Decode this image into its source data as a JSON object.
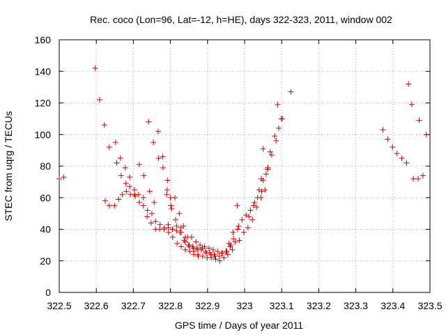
{
  "chart_data": {
    "type": "scatter",
    "title": "Rec. coco (Lon=96, Lat=-12, h=HE), days 322-323, 2011, window 002",
    "xlabel": "GPS time / Days of year 2011",
    "ylabel": "STEC from uqrg / TECUs",
    "xlim": [
      322.5,
      323.5
    ],
    "ylim": [
      0,
      160
    ],
    "grid": true,
    "marker": "plus",
    "marker_color": "#cc0000",
    "x_ticks": [
      322.5,
      322.6,
      322.7,
      322.8,
      322.9,
      323.0,
      323.1,
      323.2,
      323.3,
      323.4,
      323.5
    ],
    "x_tick_labels": [
      "322.5",
      "322.6",
      "322.7",
      "322.8",
      "322.9",
      "323",
      "323.1",
      "323.2",
      "323.3",
      "323.4",
      "323.5"
    ],
    "y_ticks": [
      0,
      20,
      40,
      60,
      80,
      100,
      120,
      140,
      160
    ],
    "y_tick_labels": [
      "0",
      "20",
      "40",
      "60",
      "80",
      "100",
      "120",
      "140",
      "160"
    ],
    "series": [
      {
        "name": "STEC",
        "points": [
          [
            322.5,
            72
          ],
          [
            322.512,
            73
          ],
          [
            322.597,
            142
          ],
          [
            322.609,
            122
          ],
          [
            322.622,
            106
          ],
          [
            322.635,
            92
          ],
          [
            322.652,
            95
          ],
          [
            322.665,
            85
          ],
          [
            322.678,
            79
          ],
          [
            322.69,
            73
          ],
          [
            322.703,
            65
          ],
          [
            322.716,
            81
          ],
          [
            322.728,
            74
          ],
          [
            322.741,
            108
          ],
          [
            322.754,
            95
          ],
          [
            322.767,
            102
          ],
          [
            322.779,
            86
          ],
          [
            322.792,
            71
          ],
          [
            322.624,
            58
          ],
          [
            322.635,
            55
          ],
          [
            322.649,
            55
          ],
          [
            322.66,
            59
          ],
          [
            322.67,
            62
          ],
          [
            322.681,
            64
          ],
          [
            322.692,
            62
          ],
          [
            322.705,
            61
          ],
          [
            322.716,
            57
          ],
          [
            322.727,
            55
          ],
          [
            322.737,
            48
          ],
          [
            322.748,
            44
          ],
          [
            322.76,
            40
          ],
          [
            322.771,
            40
          ],
          [
            322.783,
            40
          ],
          [
            322.794,
            41
          ],
          [
            322.805,
            40
          ],
          [
            322.817,
            39
          ],
          [
            322.828,
            41
          ],
          [
            322.84,
            35
          ],
          [
            322.851,
            30
          ],
          [
            322.862,
            28
          ],
          [
            322.874,
            27
          ],
          [
            322.655,
            82
          ],
          [
            322.667,
            74
          ],
          [
            322.68,
            69
          ],
          [
            322.69,
            67
          ],
          [
            322.703,
            62
          ],
          [
            322.714,
            62
          ],
          [
            322.727,
            60
          ],
          [
            322.738,
            52
          ],
          [
            322.75,
            50
          ],
          [
            322.76,
            45
          ],
          [
            322.772,
            43
          ],
          [
            322.783,
            41
          ],
          [
            322.795,
            38
          ],
          [
            322.806,
            35
          ],
          [
            322.818,
            31
          ],
          [
            322.829,
            29
          ],
          [
            322.84,
            27
          ],
          [
            322.852,
            26
          ],
          [
            322.863,
            24
          ],
          [
            322.875,
            23
          ],
          [
            322.887,
            23
          ],
          [
            322.899,
            22
          ],
          [
            322.91,
            22
          ],
          [
            322.922,
            21
          ],
          [
            322.933,
            20
          ],
          [
            322.744,
            64
          ],
          [
            322.756,
            57
          ],
          [
            322.768,
            85
          ],
          [
            322.78,
            79
          ],
          [
            322.791,
            65
          ],
          [
            322.8,
            60
          ],
          [
            322.803,
            53
          ],
          [
            322.814,
            46
          ],
          [
            322.826,
            38
          ],
          [
            322.837,
            33
          ],
          [
            322.848,
            30
          ],
          [
            322.86,
            29
          ],
          [
            322.871,
            28
          ],
          [
            322.883,
            27
          ],
          [
            322.895,
            26
          ],
          [
            322.906,
            25
          ],
          [
            322.918,
            24
          ],
          [
            322.79,
            62
          ],
          [
            322.801,
            55
          ],
          [
            322.812,
            60
          ],
          [
            322.824,
            50
          ],
          [
            322.835,
            42
          ],
          [
            322.846,
            35
          ],
          [
            322.857,
            35
          ],
          [
            322.869,
            32
          ],
          [
            322.88,
            30
          ],
          [
            322.892,
            29
          ],
          [
            322.904,
            28
          ],
          [
            322.915,
            27
          ],
          [
            322.927,
            26
          ],
          [
            322.938,
            25
          ],
          [
            322.95,
            26
          ],
          [
            322.961,
            29
          ],
          [
            322.794,
            43
          ],
          [
            322.806,
            40
          ],
          [
            322.817,
            42
          ],
          [
            322.829,
            38
          ],
          [
            322.84,
            32
          ],
          [
            322.851,
            29
          ],
          [
            322.863,
            26
          ],
          [
            322.874,
            24
          ],
          [
            322.886,
            28
          ],
          [
            322.897,
            25
          ],
          [
            322.909,
            24
          ],
          [
            322.92,
            23
          ],
          [
            322.932,
            23
          ],
          [
            322.944,
            22
          ],
          [
            322.955,
            24
          ],
          [
            322.967,
            27
          ],
          [
            322.94,
            25
          ],
          [
            322.952,
            26
          ],
          [
            322.963,
            30
          ],
          [
            322.975,
            32
          ],
          [
            322.986,
            33
          ],
          [
            322.998,
            38
          ],
          [
            323.009,
            41
          ],
          [
            323.021,
            46
          ],
          [
            323.032,
            54
          ],
          [
            323.044,
            60
          ],
          [
            323.055,
            65
          ],
          [
            322.958,
            31
          ],
          [
            322.97,
            34
          ],
          [
            322.981,
            40
          ],
          [
            322.984,
            42
          ],
          [
            322.993,
            46
          ],
          [
            323.004,
            49
          ],
          [
            323.016,
            52
          ],
          [
            323.027,
            57
          ],
          [
            323.039,
            65
          ],
          [
            323.05,
            71
          ],
          [
            323.062,
            78
          ],
          [
            323.073,
            87
          ],
          [
            323.085,
            96
          ],
          [
            322.969,
            38
          ],
          [
            322.98,
            55
          ],
          [
            323.012,
            48
          ],
          [
            323.024,
            55
          ],
          [
            323.035,
            60
          ],
          [
            323.046,
            64
          ],
          [
            323.058,
            75
          ],
          [
            323.069,
            89
          ],
          [
            323.081,
            99
          ],
          [
            323.092,
            104
          ],
          [
            323.099,
            110
          ],
          [
            323.045,
            72
          ],
          [
            323.05,
            91
          ],
          [
            323.063,
            79
          ],
          [
            323.089,
            119
          ],
          [
            323.102,
            110
          ],
          [
            323.125,
            127
          ],
          [
            323.373,
            103
          ],
          [
            323.386,
            97
          ],
          [
            323.399,
            92
          ],
          [
            323.411,
            88
          ],
          [
            323.424,
            85
          ],
          [
            323.437,
            82
          ],
          [
            323.442,
            132
          ],
          [
            323.451,
            119
          ],
          [
            323.455,
            72
          ],
          [
            323.468,
            72
          ],
          [
            323.471,
            109
          ],
          [
            323.481,
            74
          ],
          [
            323.49,
            100
          ]
        ]
      }
    ]
  }
}
